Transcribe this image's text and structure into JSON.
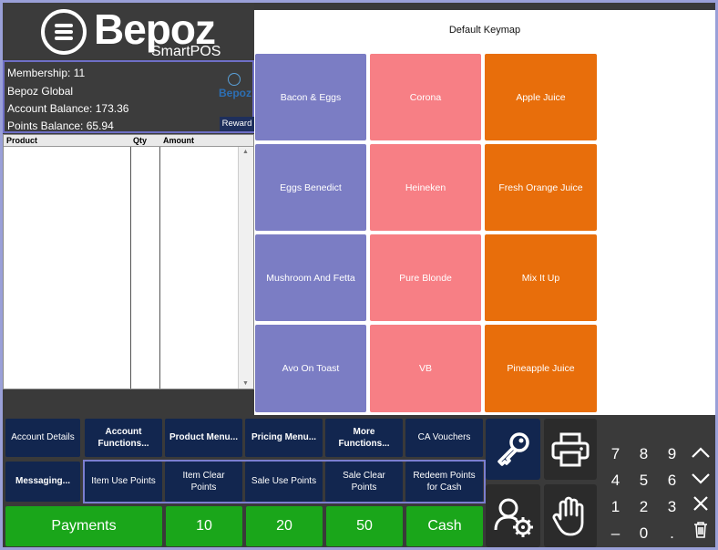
{
  "logo": {
    "word": "Bepoz",
    "sub": "SmartPOS"
  },
  "member": {
    "membership": "Membership: 11",
    "name": "Bepoz Global",
    "account_balance": "Account Balance: 173.36",
    "points_balance": "Points Balance: 65.94",
    "logo_text": "Bepoz",
    "reward_label": "Reward"
  },
  "grid": {
    "columns": [
      "Product",
      "Qty",
      "Amount"
    ]
  },
  "keymap": {
    "title": "Default Keymap",
    "keys": [
      [
        "Bacon & Eggs",
        "Corona",
        "Apple Juice"
      ],
      [
        "Eggs Benedict",
        "Heineken",
        "Fresh Orange Juice"
      ],
      [
        "Mushroom And Fetta",
        "Pure Blonde",
        "Mix It Up"
      ],
      [
        "Avo On Toast",
        "VB",
        "Pineapple Juice"
      ]
    ],
    "colors": {
      "food": "#7b7dc4",
      "beer": "#f77f85",
      "juice": "#e86e0b"
    }
  },
  "functions": {
    "row1": [
      "Account Details",
      "Account Functions...",
      "Product Menu...",
      "Pricing Menu...",
      "More Functions...",
      "CA Vouchers"
    ],
    "row2": [
      "Messaging...",
      "Item Use Points",
      "Item Clear Points",
      "Sale Use Points",
      "Sale Clear Points",
      "Redeem Points for Cash"
    ]
  },
  "tender": {
    "payments": "Payments",
    "amounts": [
      "10",
      "20",
      "50"
    ],
    "cash": "Cash"
  },
  "icons": [
    "key-icon",
    "printer-icon",
    "user-settings-icon",
    "hand-icon",
    "chevron-up-icon",
    "chevron-down-icon",
    "close-icon",
    "trash-icon"
  ],
  "numpad": {
    "rows": [
      [
        "7",
        "8",
        "9"
      ],
      [
        "4",
        "5",
        "6"
      ],
      [
        "1",
        "2",
        "3"
      ],
      [
        "–",
        "0",
        "."
      ]
    ]
  }
}
